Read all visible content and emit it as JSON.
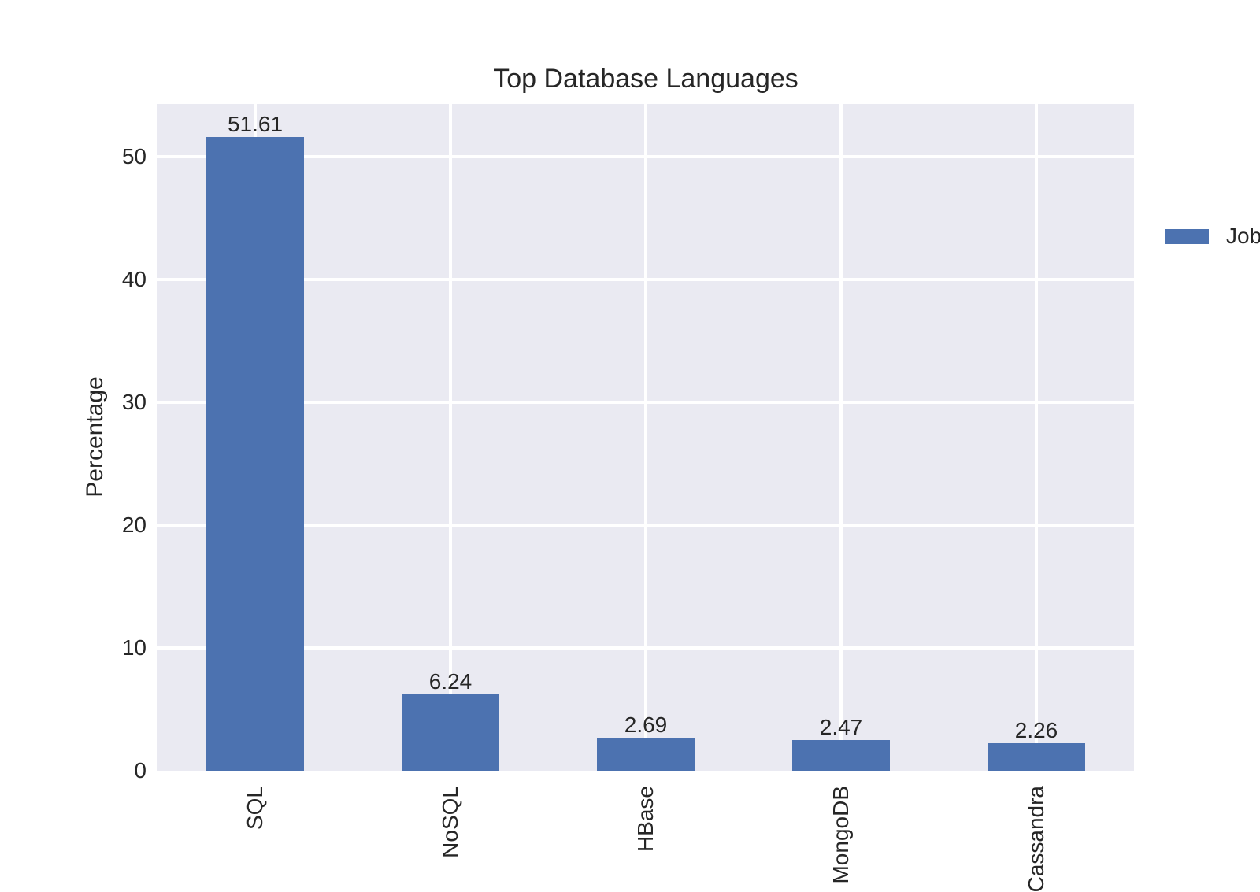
{
  "chart_data": {
    "type": "bar",
    "title": "Top Database Languages",
    "xlabel": "",
    "ylabel": "Percentage",
    "categories": [
      "SQL",
      "NoSQL",
      "HBase",
      "MongoDB",
      "Cassandra"
    ],
    "series": [
      {
        "name": "Jobs",
        "values": [
          51.61,
          6.24,
          2.69,
          2.47,
          2.26
        ]
      }
    ],
    "value_labels": [
      "51.61",
      "6.24",
      "2.69",
      "2.47",
      "2.26"
    ],
    "yticks": [
      0,
      10,
      20,
      30,
      40,
      50
    ],
    "ylim": [
      0,
      54.3
    ],
    "grid": true,
    "legend": {
      "position": "upper right",
      "entries": [
        {
          "label": "Jobs",
          "color": "#4c72b0"
        }
      ]
    },
    "colors": {
      "bar": "#4c72b0",
      "plot_background": "#eaeaf2",
      "gridline": "#ffffff",
      "figure_background": "#ffffff",
      "text": "#262626"
    }
  }
}
